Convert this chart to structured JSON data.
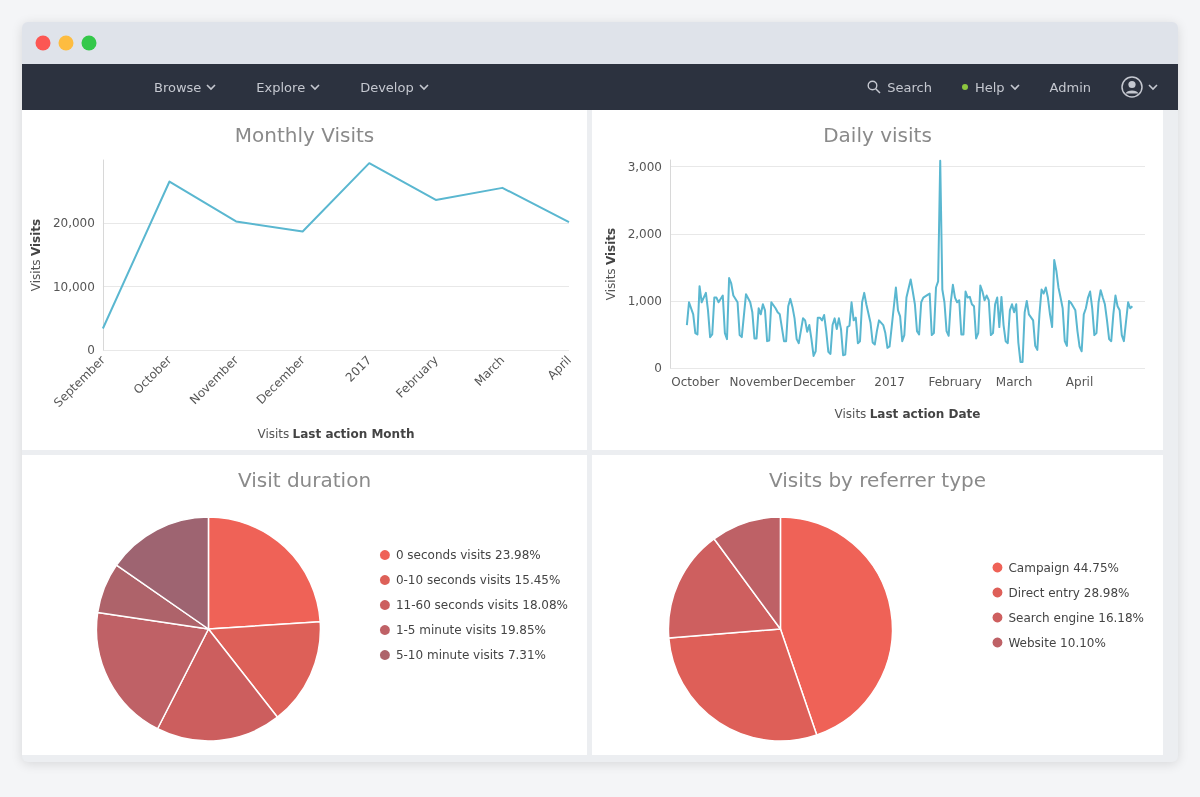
{
  "chart_data": [
    {
      "type": "other",
      "annotations": [
        "Browse",
        "Explore",
        "Develop",
        "Search",
        "Help",
        "Admin"
      ]
    },
    {
      "type": "line",
      "title": "Monthly Visits",
      "xlabel": "Visits Last action Month",
      "ylabel": "Visits Visits",
      "categories": [
        "September",
        "October",
        "November",
        "December",
        "2017",
        "February",
        "March",
        "April"
      ],
      "series": [
        {
          "color": "#5ab7d0",
          "values": [
            3400,
            26600,
            20300,
            18700,
            29500,
            23700,
            25600,
            20200
          ]
        }
      ],
      "ylim": [
        0,
        30000
      ],
      "yticks": [
        0,
        {
          "value": 10000,
          "label": "10,000"
        },
        {
          "value": 20000,
          "label": "20,000"
        }
      ],
      "grid": "y",
      "marker": "none",
      "legend": false
    },
    {
      "type": "line",
      "title": "Daily visits",
      "xlabel": "Visits Last action Date",
      "ylabel": "Visits Visits",
      "x": [
        "2016-09-27",
        "2016-09-28",
        "2016-09-30",
        "2016-10-01",
        "2016-10-02",
        "2016-10-03",
        "2016-10-04",
        "2016-10-06",
        "2016-10-07",
        "2016-10-08",
        "2016-10-09",
        "2016-10-10",
        "2016-10-11",
        "2016-10-12",
        "2016-10-14",
        "2016-10-15",
        "2016-10-16",
        "2016-10-17",
        "2016-10-18",
        "2016-10-19",
        "2016-10-21",
        "2016-10-22",
        "2016-10-23",
        "2016-10-25",
        "2016-10-27",
        "2016-10-28",
        "2016-10-29",
        "2016-10-30",
        "2016-10-31",
        "2016-11-01",
        "2016-11-02",
        "2016-11-03",
        "2016-11-04",
        "2016-11-05",
        "2016-11-06",
        "2016-11-08",
        "2016-11-09",
        "2016-11-10",
        "2016-11-12",
        "2016-11-13",
        "2016-11-14",
        "2016-11-15",
        "2016-11-16",
        "2016-11-17",
        "2016-11-18",
        "2016-11-19",
        "2016-11-21",
        "2016-11-22",
        "2016-11-23",
        "2016-11-24",
        "2016-11-25",
        "2016-11-26",
        "2016-11-27",
        "2016-11-28",
        "2016-11-29",
        "2016-11-30",
        "2016-12-01",
        "2016-12-02",
        "2016-12-03",
        "2016-12-04",
        "2016-12-05",
        "2016-12-06",
        "2016-12-07",
        "2016-12-08",
        "2016-12-09",
        "2016-12-10",
        "2016-12-11",
        "2016-12-12",
        "2016-12-13",
        "2016-12-14",
        "2016-12-15",
        "2016-12-16",
        "2016-12-17",
        "2016-12-18",
        "2016-12-19",
        "2016-12-20",
        "2016-12-21",
        "2016-12-23",
        "2016-12-24",
        "2016-12-25",
        "2016-12-26",
        "2016-12-27",
        "2016-12-29",
        "2016-12-30",
        "2016-12-31",
        "2017-01-01",
        "2017-01-02",
        "2017-01-04",
        "2017-01-05",
        "2017-01-06",
        "2017-01-07",
        "2017-01-08",
        "2017-01-09",
        "2017-01-11",
        "2017-01-12",
        "2017-01-13",
        "2017-01-14",
        "2017-01-15",
        "2017-01-16",
        "2017-01-17",
        "2017-01-19",
        "2017-01-20",
        "2017-01-21",
        "2017-01-22",
        "2017-01-23",
        "2017-01-24",
        "2017-01-25",
        "2017-01-26",
        "2017-01-27",
        "2017-01-28",
        "2017-01-29",
        "2017-01-30",
        "2017-01-31",
        "2017-02-01",
        "2017-02-02",
        "2017-02-03",
        "2017-02-04",
        "2017-02-05",
        "2017-02-06",
        "2017-02-07",
        "2017-02-08",
        "2017-02-09",
        "2017-02-10",
        "2017-02-11",
        "2017-02-12",
        "2017-02-13",
        "2017-02-14",
        "2017-02-15",
        "2017-02-16",
        "2017-02-17",
        "2017-02-18",
        "2017-02-19",
        "2017-02-20",
        "2017-02-21",
        "2017-02-22",
        "2017-02-23",
        "2017-02-24",
        "2017-02-25",
        "2017-02-26",
        "2017-02-27",
        "2017-02-28",
        "2017-03-01",
        "2017-03-02",
        "2017-03-03",
        "2017-03-04",
        "2017-03-05",
        "2017-03-06",
        "2017-03-07",
        "2017-03-08",
        "2017-03-10",
        "2017-03-11",
        "2017-03-12",
        "2017-03-13",
        "2017-03-14",
        "2017-03-15",
        "2017-03-16",
        "2017-03-17",
        "2017-03-18",
        "2017-03-19",
        "2017-03-20",
        "2017-03-21",
        "2017-03-22",
        "2017-03-23",
        "2017-03-24",
        "2017-03-25",
        "2017-03-26",
        "2017-03-27",
        "2017-03-28",
        "2017-03-30",
        "2017-03-31",
        "2017-04-01",
        "2017-04-02",
        "2017-04-03",
        "2017-04-04",
        "2017-04-05",
        "2017-04-06",
        "2017-04-07",
        "2017-04-08",
        "2017-04-09",
        "2017-04-10",
        "2017-04-11",
        "2017-04-12",
        "2017-04-13",
        "2017-04-14",
        "2017-04-15",
        "2017-04-16",
        "2017-04-17",
        "2017-04-18",
        "2017-04-19",
        "2017-04-20",
        "2017-04-21",
        "2017-04-22",
        "2017-04-24",
        "2017-04-25",
        "2017-04-26"
      ],
      "series": [
        {
          "color": "#5ab7d0",
          "values": [
            640,
            980,
            800,
            520,
            500,
            1220,
            980,
            1120,
            860,
            460,
            500,
            1050,
            1050,
            980,
            1080,
            520,
            430,
            1340,
            1260,
            1080,
            980,
            490,
            460,
            1100,
            980,
            830,
            440,
            440,
            890,
            800,
            950,
            860,
            400,
            410,
            980,
            890,
            830,
            800,
            400,
            400,
            920,
            1030,
            910,
            740,
            430,
            370,
            740,
            710,
            540,
            640,
            430,
            180,
            250,
            750,
            750,
            710,
            790,
            550,
            240,
            210,
            640,
            740,
            580,
            740,
            580,
            190,
            200,
            610,
            630,
            980,
            710,
            750,
            370,
            400,
            980,
            1120,
            950,
            670,
            380,
            350,
            550,
            710,
            640,
            520,
            300,
            320,
            610,
            1200,
            860,
            770,
            400,
            490,
            1050,
            1320,
            1140,
            950,
            550,
            500,
            980,
            1050,
            1090,
            1110,
            490,
            520,
            1200,
            1290,
            3090,
            1170,
            980,
            550,
            480,
            980,
            1240,
            1050,
            980,
            1010,
            500,
            500,
            1140,
            1050,
            1060,
            950,
            920,
            440,
            520,
            1230,
            1140,
            1010,
            1080,
            1010,
            490,
            520,
            950,
            1050,
            610,
            1060,
            640,
            400,
            370,
            860,
            950,
            830,
            950,
            380,
            90,
            90,
            830,
            1000,
            800,
            710,
            330,
            270,
            800,
            1170,
            1110,
            1200,
            1050,
            800,
            610,
            1610,
            1450,
            1200,
            1050,
            890,
            400,
            330,
            1000,
            970,
            860,
            550,
            320,
            250,
            800,
            890,
            1050,
            1140,
            890,
            490,
            520,
            980,
            1160,
            1050,
            950,
            710,
            430,
            400,
            800,
            1080,
            920,
            860,
            490,
            400,
            980,
            890,
            920
          ]
        }
      ],
      "xlim": [
        "2016-09-19",
        "2017-05-02"
      ],
      "xticks": [
        {
          "value": "2016-10-01",
          "label": "October"
        },
        {
          "value": "2016-11-01",
          "label": "November"
        },
        {
          "value": "2016-12-01",
          "label": "December"
        },
        {
          "value": "2017-01-01",
          "label": "2017"
        },
        {
          "value": "2017-02-01",
          "label": "February"
        },
        {
          "value": "2017-03-01",
          "label": "March"
        },
        {
          "value": "2017-04-01",
          "label": "April"
        }
      ],
      "ylim": [
        0,
        3100
      ],
      "yticks": [
        0,
        {
          "value": 1000,
          "label": "1,000"
        },
        {
          "value": 2000,
          "label": "2,000"
        },
        {
          "value": 3000,
          "label": "3,000"
        }
      ],
      "grid": "y",
      "marker": "none",
      "legend": false
    },
    {
      "type": "pie",
      "title": "Visit duration",
      "categories": [
        "0 seconds visits",
        "0-10 seconds visits",
        "11-60 seconds visits",
        "1-5 minute visits",
        "5-10 minute visits",
        null
      ],
      "values": [
        23.98,
        15.45,
        18.08,
        19.85,
        7.31,
        15.33
      ],
      "value_labels": [
        "23.98%",
        "15.45%",
        "18.08%",
        "19.85%",
        "7.31%",
        null
      ],
      "colors": [
        "#ef6257",
        "#dd6058",
        "#cc5e5e",
        "#bf6166",
        "#ae636a",
        "#9e6471"
      ],
      "legend": "right"
    },
    {
      "type": "pie",
      "title": "Visits by referrer type",
      "categories": [
        "Campaign",
        "Direct entry",
        "Search engine",
        "Website"
      ],
      "values": [
        44.75,
        28.98,
        16.18,
        10.1
      ],
      "value_labels": [
        "44.75%",
        "28.98%",
        "16.18%",
        "10.10%"
      ],
      "colors": [
        "#ef6257",
        "#de5f58",
        "#ce5f5f",
        "#be6166"
      ],
      "legend": "right"
    }
  ]
}
